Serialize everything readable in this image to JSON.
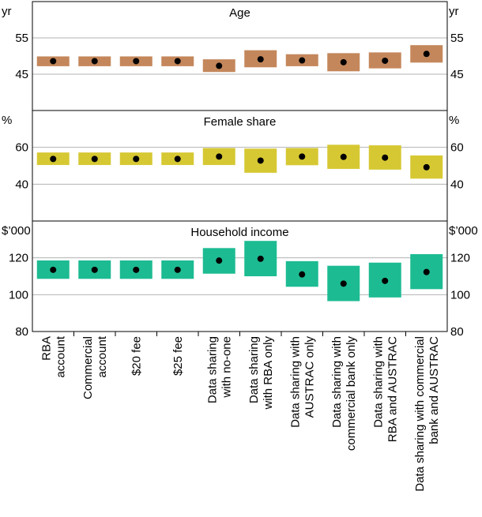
{
  "chart_data": {
    "type": "range-bar-with-point",
    "categories": [
      [
        "RBA",
        "account"
      ],
      [
        "Commercial",
        "account"
      ],
      [
        "$20 fee"
      ],
      [
        "$25 fee"
      ],
      [
        "Data sharing",
        "with no-one"
      ],
      [
        "Data sharing",
        "with RBA only"
      ],
      [
        "Data sharing with",
        "AUSTRAC only"
      ],
      [
        "Data sharing with",
        "commercial bank only"
      ],
      [
        "Data sharing with",
        "RBA and AUSTRAC"
      ],
      [
        "Data sharing with commercial",
        "bank and AUSTRAC"
      ]
    ],
    "panels": [
      {
        "title": "Age",
        "unit_left": "yr",
        "unit_right": "yr",
        "ylim": [
          35,
          65
        ],
        "ticks": [
          45,
          55
        ],
        "gridlines": [
          45,
          55
        ],
        "color": "#c4875b",
        "point": [
          48.6,
          48.6,
          48.6,
          48.6,
          47.3,
          49.1,
          48.8,
          48.3,
          48.7,
          50.6
        ],
        "low": [
          47.2,
          47.2,
          47.2,
          47.2,
          45.6,
          46.9,
          47.2,
          45.8,
          46.6,
          48.2
        ],
        "high": [
          49.9,
          49.9,
          49.9,
          49.9,
          49.1,
          51.6,
          50.5,
          50.8,
          51.0,
          53.0
        ]
      },
      {
        "title": "Female share",
        "unit_left": "%",
        "unit_right": "%",
        "ylim": [
          20,
          80
        ],
        "ticks": [
          40,
          60
        ],
        "gridlines": [
          40,
          60
        ],
        "color": "#d6c833",
        "point": [
          53.7,
          53.7,
          53.7,
          53.7,
          55.0,
          52.8,
          55.0,
          54.8,
          54.4,
          49.2
        ],
        "low": [
          50.4,
          50.4,
          50.4,
          50.4,
          50.4,
          46.2,
          50.3,
          48.3,
          47.9,
          43.0
        ],
        "high": [
          57.2,
          57.2,
          57.2,
          57.2,
          59.6,
          59.3,
          59.6,
          61.4,
          61.1,
          55.6
        ]
      },
      {
        "title": "Household income",
        "unit_left": "$’000",
        "unit_right": "$’000",
        "ylim": [
          80,
          140
        ],
        "ticks": [
          80,
          100,
          120
        ],
        "gridlines": [
          100,
          120
        ],
        "color": "#1dbb92",
        "point": [
          113.5,
          113.5,
          113.5,
          113.5,
          118.5,
          119.5,
          111.0,
          106.0,
          107.5,
          112.3
        ],
        "low": [
          108.6,
          108.6,
          108.6,
          108.6,
          111.4,
          110.0,
          104.3,
          96.5,
          98.5,
          103.0
        ],
        "high": [
          118.6,
          118.6,
          118.6,
          118.6,
          125.3,
          129.2,
          118.2,
          115.7,
          117.4,
          122.0
        ]
      }
    ]
  }
}
